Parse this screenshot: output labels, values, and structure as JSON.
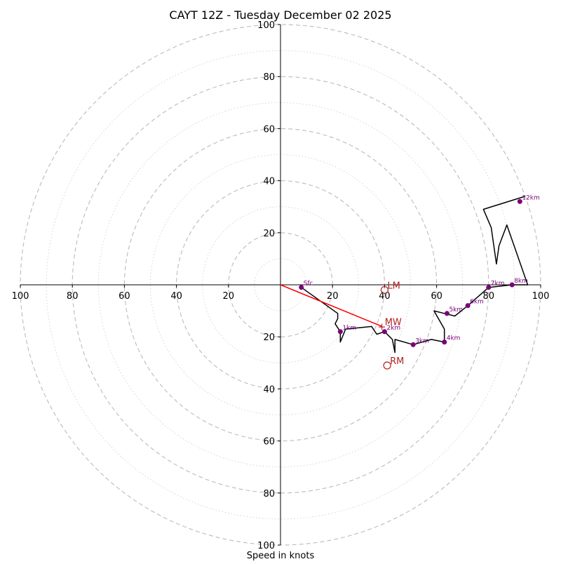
{
  "chart_data": {
    "type": "hodograph",
    "title": "CAYT 12Z - Tuesday December 02 2025",
    "xlabel": "Speed in knots",
    "units": "knots",
    "max_speed": 100,
    "ring_major_step": 20,
    "ring_minor_step": 10,
    "x_tick_labels": [
      "100",
      "80",
      "60",
      "40",
      "20",
      "20",
      "40",
      "60",
      "80",
      "100"
    ],
    "y_tick_labels": [
      "100",
      "80",
      "60",
      "40",
      "20",
      "20",
      "40",
      "60",
      "80",
      "100"
    ],
    "x_tick_values": [
      -100,
      -80,
      -60,
      -40,
      -20,
      20,
      40,
      60,
      80,
      100
    ],
    "y_tick_values": [
      100,
      80,
      60,
      40,
      20,
      -20,
      -40,
      -60,
      -80,
      -100
    ],
    "trace": [
      [
        8,
        -1
      ],
      [
        22,
        -11
      ],
      [
        22,
        -13
      ],
      [
        21,
        -15
      ],
      [
        23,
        -18
      ],
      [
        23,
        -22
      ],
      [
        25,
        -17
      ],
      [
        35,
        -16
      ],
      [
        37,
        -19
      ],
      [
        40,
        -18
      ],
      [
        43,
        -21
      ],
      [
        44,
        -26
      ],
      [
        44,
        -21
      ],
      [
        51,
        -23
      ],
      [
        58,
        -21
      ],
      [
        63,
        -22
      ],
      [
        63,
        -17
      ],
      [
        59,
        -10
      ],
      [
        63,
        -11
      ],
      [
        67,
        -12
      ],
      [
        72,
        -8
      ],
      [
        80,
        -1
      ],
      [
        89,
        0
      ],
      [
        95,
        0
      ],
      [
        87,
        23
      ],
      [
        84,
        15
      ],
      [
        83,
        8
      ],
      [
        81,
        22
      ],
      [
        78,
        29
      ],
      [
        94,
        34
      ]
    ],
    "height_markers": [
      {
        "label": "Sfc",
        "u": 8,
        "v": -1
      },
      {
        "label": "1km",
        "u": 23,
        "v": -18
      },
      {
        "label": "2km",
        "u": 40,
        "v": -18
      },
      {
        "label": "3km",
        "u": 51,
        "v": -23
      },
      {
        "label": "4km",
        "u": 63,
        "v": -22
      },
      {
        "label": "5km",
        "u": 64,
        "v": -11
      },
      {
        "label": "6km",
        "u": 72,
        "v": -8
      },
      {
        "label": "7km",
        "u": 80,
        "v": -1
      },
      {
        "label": "8km",
        "u": 89,
        "v": 0
      },
      {
        "label": "12km",
        "u": 92,
        "v": 32
      }
    ],
    "motion_points": [
      {
        "label": "LM",
        "u": 40,
        "v": -2
      },
      {
        "label": "RM",
        "u": 41,
        "v": -31
      },
      {
        "label": "MW",
        "u": 39,
        "v": -16
      }
    ],
    "mean_wind_vector": {
      "u": 39,
      "v": -16
    },
    "colors": {
      "trace": "#000000",
      "marker": "#7a007a",
      "motion": "#b22222",
      "vector": "#ff0000",
      "ring": "#bbbbbb"
    }
  }
}
